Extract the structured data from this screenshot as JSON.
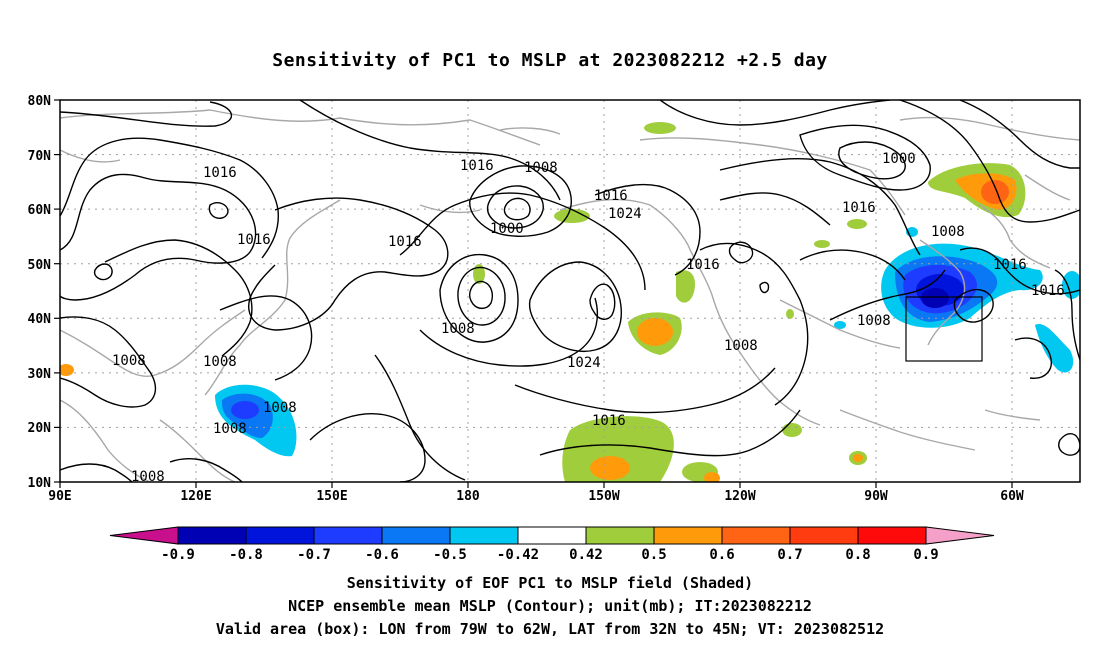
{
  "title": "Sensitivity of PC1 to MSLP at 2023082212 +2.5 day",
  "axes": {
    "lat_labels": [
      "80N",
      "70N",
      "60N",
      "50N",
      "40N",
      "30N",
      "20N",
      "10N"
    ],
    "lon_labels": [
      "90E",
      "120E",
      "150E",
      "180",
      "150W",
      "120W",
      "90W",
      "60W"
    ]
  },
  "contour_labels": [
    {
      "name": "contour-label-1016-a",
      "text": "1016"
    },
    {
      "name": "contour-label-1016-b",
      "text": "1016"
    },
    {
      "name": "contour-label-1016-c",
      "text": "1016"
    },
    {
      "name": "contour-label-1016-d",
      "text": "1016"
    },
    {
      "name": "contour-label-1008-a",
      "text": "1008"
    },
    {
      "name": "contour-label-1000-a",
      "text": "1000"
    },
    {
      "name": "contour-label-1016-e",
      "text": "1016"
    },
    {
      "name": "contour-label-1024-a",
      "text": "1024"
    },
    {
      "name": "contour-label-1016-f",
      "text": "1016"
    },
    {
      "name": "contour-label-1008-b",
      "text": "1008"
    },
    {
      "name": "contour-label-1024-b",
      "text": "1024"
    },
    {
      "name": "contour-label-1000-b",
      "text": "1000"
    },
    {
      "name": "contour-label-1016-g",
      "text": "1016"
    },
    {
      "name": "contour-label-1008-c",
      "text": "1008"
    },
    {
      "name": "contour-label-1016-h",
      "text": "1016"
    },
    {
      "name": "contour-label-1016-i",
      "text": "1016"
    },
    {
      "name": "contour-label-1008-d",
      "text": "1008"
    },
    {
      "name": "contour-label-1008-e",
      "text": "1008"
    },
    {
      "name": "contour-label-1008-f",
      "text": "1008"
    },
    {
      "name": "contour-label-1008-g",
      "text": "1008"
    },
    {
      "name": "contour-label-1008-h",
      "text": "1008"
    },
    {
      "name": "contour-label-1008-i",
      "text": "1008"
    },
    {
      "name": "contour-label-1008-j",
      "text": "1008"
    },
    {
      "name": "contour-label-1016-j",
      "text": "1016"
    }
  ],
  "colorbar": {
    "labels": [
      "-0.9",
      "-0.8",
      "-0.7",
      "-0.6",
      "-0.5",
      "-0.42",
      "0.42",
      "0.5",
      "0.6",
      "0.7",
      "0.8",
      "0.9"
    ],
    "colors": [
      "#c8108c",
      "#0000b4",
      "#0014dc",
      "#1e3cff",
      "#0a78f5",
      "#00c8f0",
      "#ffffff",
      "#a0cd3c",
      "#ff9b0a",
      "#ff6414",
      "#ff3c0f",
      "#ff0a0a",
      "#f5a0c8"
    ]
  },
  "valid_box": {
    "lon_from": "79W",
    "lon_to": "62W",
    "lat_from": "32N",
    "lat_to": "45N"
  },
  "captions": {
    "line1": "Sensitivity of EOF PC1 to MSLP field (Shaded)",
    "line2": "NCEP ensemble mean MSLP (Contour); unit(mb); IT:2023082212",
    "line3": "Valid area (box): LON from 79W to 62W, LAT from 32N to 45N; VT: 2023082512"
  }
}
